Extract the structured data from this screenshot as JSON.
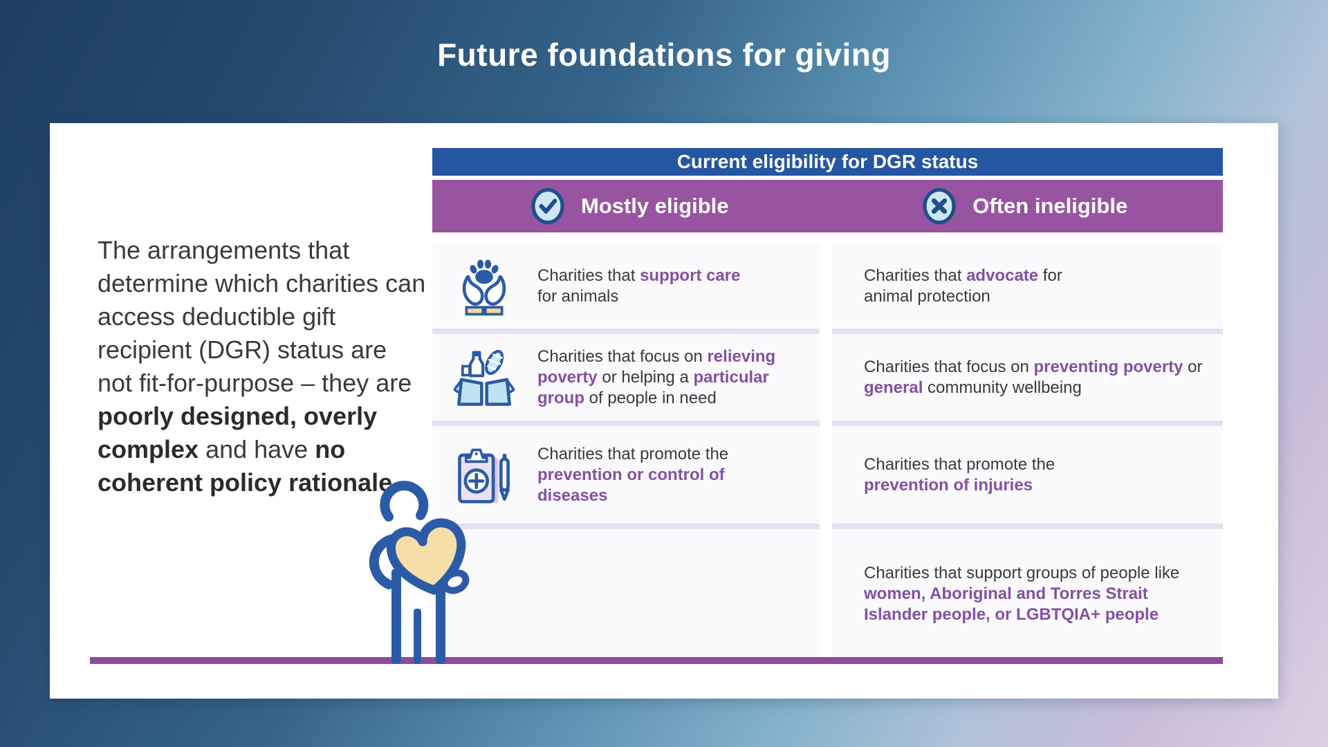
{
  "title": "Future foundations for giving",
  "intro": {
    "segments": [
      {
        "text": "The arrangements that determine which charities can access deductible gift recipient (DGR) status are not fit-for-purpose – they are "
      },
      {
        "text": "poorly designed, overly complex",
        "accent": false,
        "bold": true
      },
      {
        "text": " and have ",
        "bold": false
      },
      {
        "text": "no coherent policy rationale",
        "bold": true
      }
    ]
  },
  "table": {
    "header": "Current eligibility for DGR status",
    "columns": [
      {
        "label": "Mostly eligible",
        "icon": "check-circle-icon"
      },
      {
        "label": "Often ineligible",
        "icon": "x-circle-icon"
      }
    ],
    "rows": [
      {
        "icon": "hands-holding-paw-icon",
        "left": [
          {
            "text": "Charities that "
          },
          {
            "text": "support care",
            "accent": true
          },
          {
            "text": " for animals"
          }
        ],
        "right": [
          {
            "text": "Charities that "
          },
          {
            "text": "advocate",
            "accent": true
          },
          {
            "text": " for animal protection"
          }
        ]
      },
      {
        "icon": "donation-box-icon",
        "left": [
          {
            "text": "Charities that focus on "
          },
          {
            "text": "relieving poverty",
            "accent": true
          },
          {
            "text": " or helping a "
          },
          {
            "text": "particular group",
            "accent": true
          },
          {
            "text": " of people in need"
          }
        ],
        "right": [
          {
            "text": "Charities that focus on "
          },
          {
            "text": "preventing poverty",
            "accent": true
          },
          {
            "text": " or "
          },
          {
            "text": "general",
            "accent": true
          },
          {
            "text": " community wellbeing"
          }
        ]
      },
      {
        "icon": "medical-clipboard-icon",
        "left": [
          {
            "text": "Charities that promote the "
          },
          {
            "text": "prevention or control of diseases",
            "accent": true
          }
        ],
        "right": [
          {
            "text": "Charities that promote the "
          },
          {
            "text": "prevention of injuries",
            "accent": true
          }
        ]
      },
      {
        "icon": null,
        "left": [],
        "right": [
          {
            "text": "Charities that support groups of people like "
          },
          {
            "text": "women, Aboriginal and Torres Strait Islander people, or LGBTQIA+ people",
            "accent": true
          }
        ]
      }
    ]
  },
  "colors": {
    "header_blue": "#2456a2",
    "header_purple": "#9854a0",
    "accent_purple": "#8450a3",
    "divider_lavender": "#e7dff0",
    "baseline_purple": "#8b4d9b",
    "icon_blue": "#2b5ba6",
    "icon_light_blue": "#cfe7f5",
    "heart_cream": "#f6dfa6",
    "cuff_tan": "#f7d794",
    "body_text": "#3a3a3a",
    "background_top": "#1e3e64",
    "background_bottom": "#dccfe4"
  }
}
